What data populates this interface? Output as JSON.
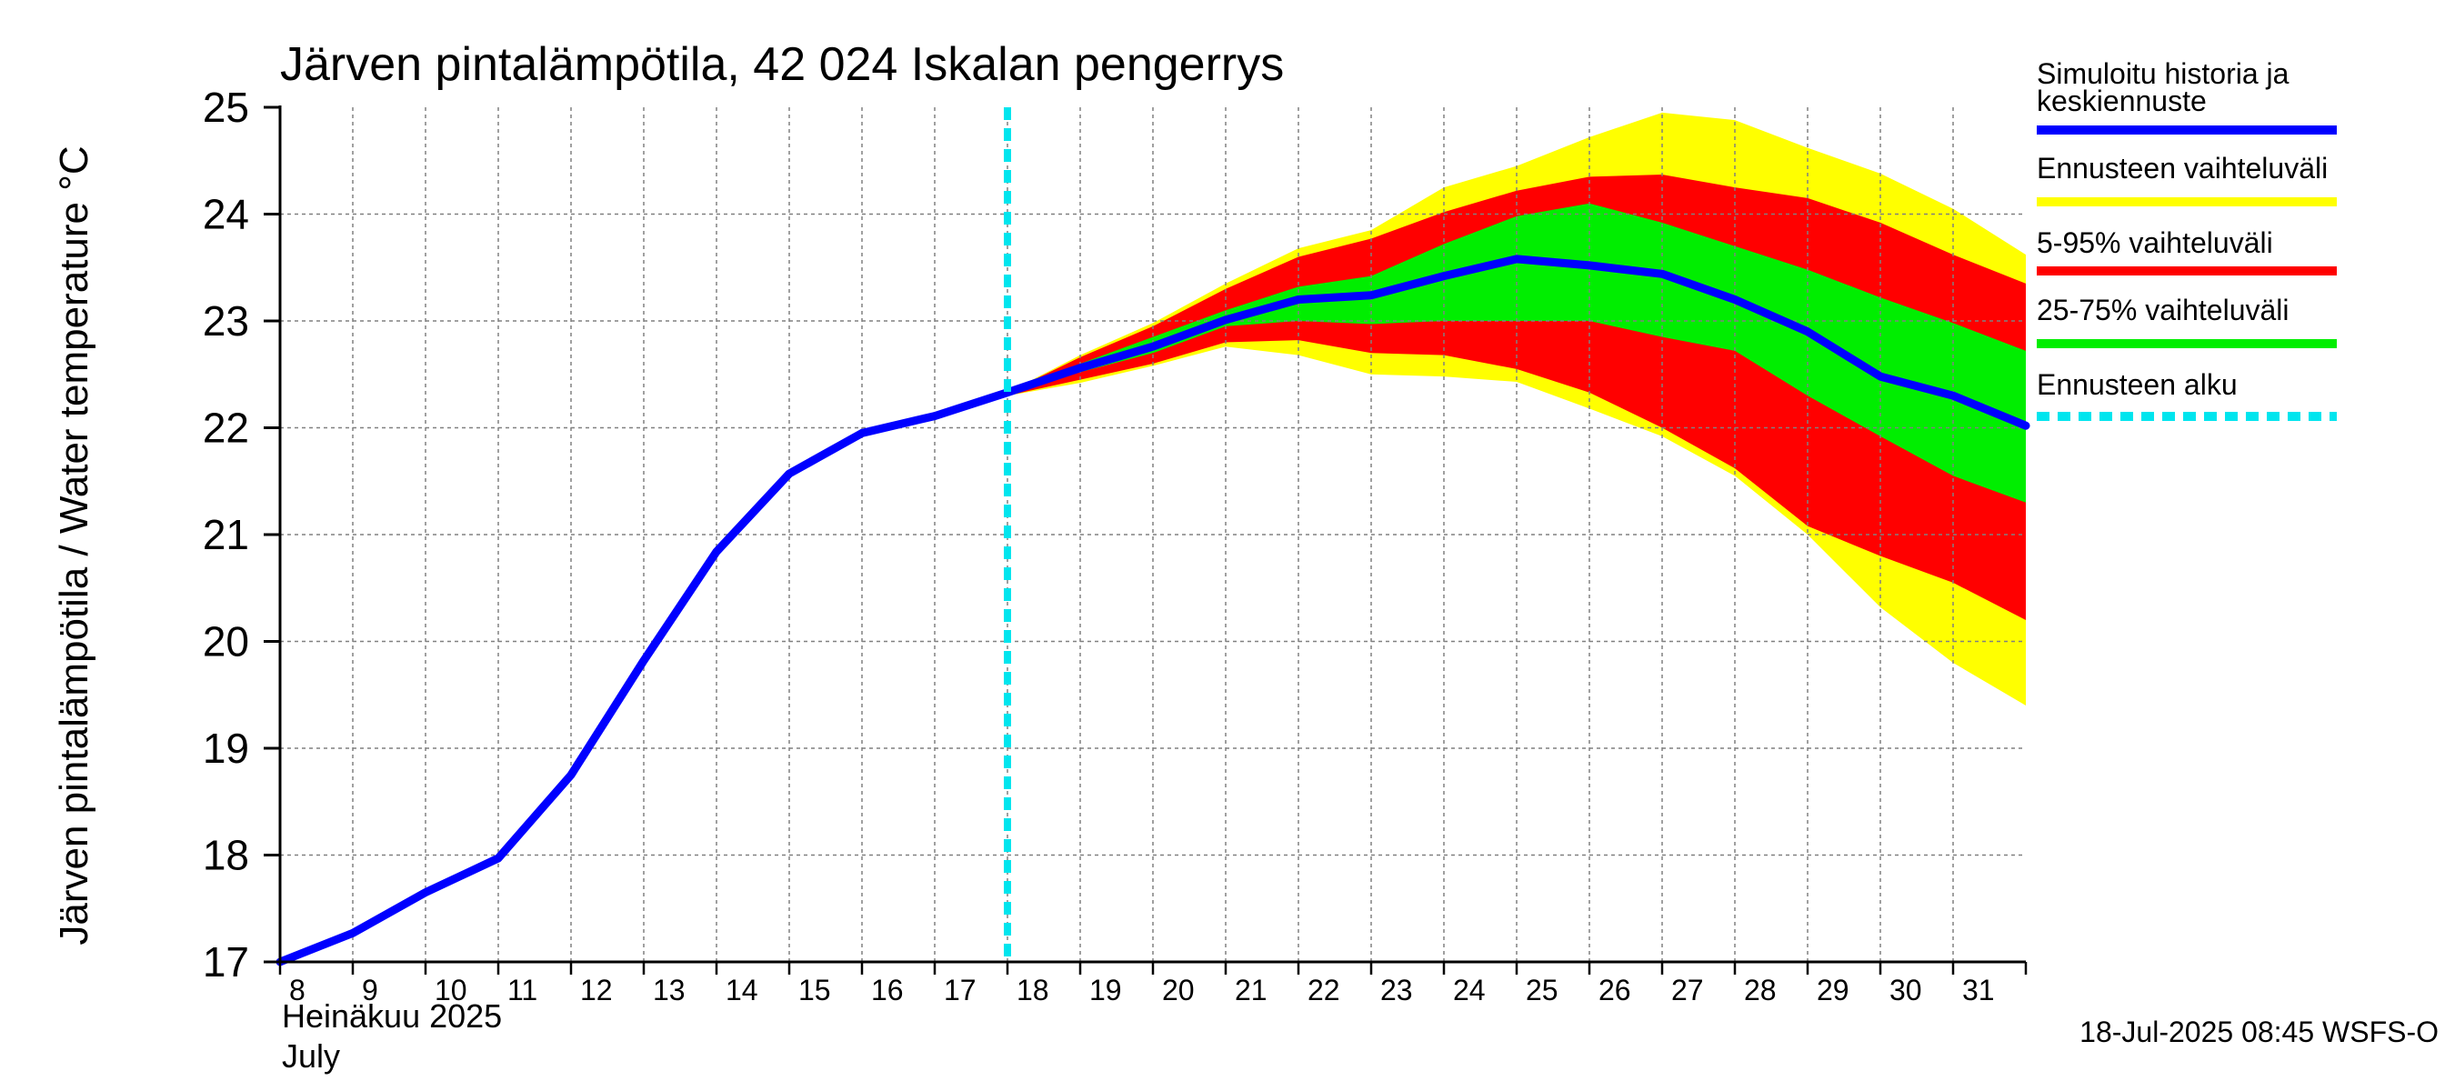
{
  "chart_data": {
    "type": "area",
    "title": "Järven pintalämpötila, 42 024 Iskalan pengerrys",
    "ylabel": "Järven pintalämpötila / Water temperature °C",
    "xlabel": "",
    "x_month_fi": "Heinäkuu  2025",
    "x_month_en": "July",
    "ylim": [
      17,
      25
    ],
    "yticks": [
      17,
      18,
      19,
      20,
      21,
      22,
      23,
      24,
      25
    ],
    "xlim": [
      8,
      32
    ],
    "xticks": [
      "8",
      "9",
      "10",
      "11",
      "12",
      "13",
      "14",
      "15",
      "16",
      "17",
      "18",
      "19",
      "20",
      "21",
      "22",
      "23",
      "24",
      "25",
      "26",
      "27",
      "28",
      "29",
      "30",
      "31"
    ],
    "forecast_start": 18,
    "grid": true,
    "colors": {
      "history": "#0000ff",
      "range_full": "#ffff00",
      "range_5_95": "#ff0000",
      "range_25_75": "#00ee00",
      "forecast_start": "#00e5ee"
    },
    "history": {
      "x": [
        8,
        9,
        10,
        11,
        12,
        13,
        14,
        15,
        16,
        17,
        18,
        19,
        20,
        21,
        22,
        23,
        24,
        25,
        26,
        27,
        28,
        29,
        30,
        31,
        32
      ],
      "y": [
        17.0,
        17.27,
        17.65,
        17.97,
        18.75,
        19.82,
        20.84,
        21.57,
        21.95,
        22.11,
        22.33,
        22.56,
        22.76,
        23.01,
        23.2,
        23.24,
        23.42,
        23.58,
        23.52,
        23.44,
        23.2,
        22.9,
        22.48,
        22.3,
        22.02
      ]
    },
    "bands": [
      {
        "name": "Ennusteen vaihteluväli",
        "x": [
          18,
          19,
          20,
          21,
          22,
          23,
          24,
          25,
          26,
          27,
          28,
          29,
          30,
          31,
          32
        ],
        "upper": [
          22.33,
          22.68,
          22.98,
          23.35,
          23.68,
          23.85,
          24.25,
          24.45,
          24.72,
          24.95,
          24.88,
          24.62,
          24.38,
          24.05,
          23.62
        ],
        "lower": [
          22.3,
          22.42,
          22.58,
          22.76,
          22.68,
          22.5,
          22.48,
          22.43,
          22.18,
          21.92,
          21.55,
          21.0,
          20.32,
          19.8,
          19.4
        ]
      },
      {
        "name": "5-95% vaihteluväli",
        "x": [
          18,
          19,
          20,
          21,
          22,
          23,
          24,
          25,
          26,
          27,
          28,
          29,
          30,
          31,
          32
        ],
        "upper": [
          22.33,
          22.66,
          22.95,
          23.3,
          23.6,
          23.77,
          24.02,
          24.22,
          24.35,
          24.37,
          24.25,
          24.15,
          23.92,
          23.62,
          23.35
        ],
        "lower": [
          22.3,
          22.45,
          22.6,
          22.8,
          22.82,
          22.7,
          22.68,
          22.55,
          22.33,
          22.0,
          21.62,
          21.08,
          20.8,
          20.55,
          20.2
        ]
      },
      {
        "name": "25-75% vaihteluväli",
        "x": [
          18,
          19,
          20,
          21,
          22,
          23,
          24,
          25,
          26,
          27,
          28,
          29,
          30,
          31,
          32
        ],
        "upper": [
          22.33,
          22.6,
          22.85,
          23.1,
          23.32,
          23.42,
          23.72,
          23.98,
          24.1,
          23.92,
          23.7,
          23.48,
          23.22,
          22.98,
          22.72
        ],
        "lower": [
          22.32,
          22.52,
          22.7,
          22.95,
          23.0,
          22.97,
          23.0,
          23.0,
          23.0,
          22.85,
          22.72,
          22.3,
          21.92,
          21.55,
          21.3
        ]
      }
    ],
    "legend": [
      {
        "label": "Simuloitu historia ja keskiennuste",
        "label_lines": [
          "Simuloitu historia ja",
          "keskiennuste"
        ],
        "color": "#0000ff",
        "style": "solid"
      },
      {
        "label": "Ennusteen vaihteluväli",
        "label_lines": [
          "Ennusteen vaihteluväli"
        ],
        "color": "#ffff00",
        "style": "solid"
      },
      {
        "label": "5-95% vaihteluväli",
        "label_lines": [
          "5-95% vaihteluväli"
        ],
        "color": "#ff0000",
        "style": "solid"
      },
      {
        "label": "25-75% vaihteluväli",
        "label_lines": [
          "25-75% vaihteluväli"
        ],
        "color": "#00ee00",
        "style": "solid"
      },
      {
        "label": "Ennusteen alku",
        "label_lines": [
          "Ennusteen alku"
        ],
        "color": "#00e5ee",
        "style": "dashed"
      }
    ],
    "legend_position": "right",
    "footer": "18-Jul-2025 08:45 WSFS-O"
  }
}
